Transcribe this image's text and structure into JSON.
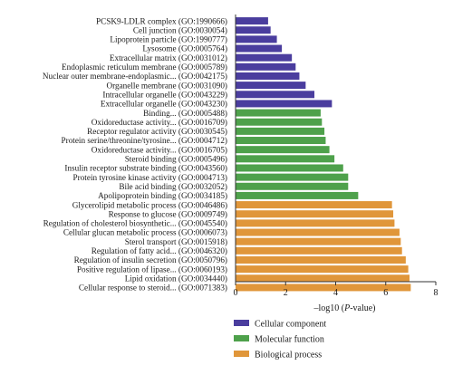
{
  "chart_data": {
    "type": "bar",
    "orientation": "horizontal",
    "xlabel": "–log10 (P-value)",
    "xlim": [
      0,
      8
    ],
    "xticks": [
      0,
      2,
      4,
      6,
      8
    ],
    "grid": false,
    "legend_position": "bottom-right",
    "series": [
      {
        "name": "Cellular component",
        "color": "#4a3d9e",
        "categories": [
          "PCSK9-LDLR complex (GO:1990666)",
          "Cell junction (GO:0030054)",
          "Lipoprotein particle (GO:1990777)",
          "Lysosome (GO:0005764)",
          "Extracellular matrix (GO:0031012)",
          "Endoplasmic reticulum membrane (GO:0005789)",
          "Nuclear outer membrane-endoplasmic... (GO:0042175)",
          "Organelle membrane (GO:0031090)",
          "Intracellular organelle (GO:0043229)",
          "Extracellular organelle (GO:0043230)"
        ],
        "values": [
          1.3,
          1.4,
          1.65,
          1.85,
          2.25,
          2.4,
          2.55,
          2.8,
          3.15,
          3.85
        ]
      },
      {
        "name": "Molecular function",
        "color": "#4ea14b",
        "categories": [
          "Binding... (GO:0005488)",
          "Oxidoreductase activity... (GO:0016709)",
          "Receptor regulator activity (GO:0030545)",
          "Protein serine/threonine/tyrosine... (GO:0004712)",
          "Oxidoreductase activity... (GO:0016705)",
          "Steroid binding (GO:0005496)",
          "Insulin receptor substrate binding (GO:0043560)",
          "Protein tyrosine kinase activity (GO:0004713)",
          "Bile acid binding (GO:0032052)",
          "Apolipoprotein binding (GO:0034185)"
        ],
        "values": [
          3.4,
          3.45,
          3.55,
          3.6,
          3.75,
          3.95,
          4.3,
          4.5,
          4.5,
          4.9
        ]
      },
      {
        "name": "Biological process",
        "color": "#e0963a",
        "categories": [
          "Glycerolipid metabolic process (GO:0046486)",
          "Response to glucose (GO:0009749)",
          "Regulation of cholesterol biosynthetic... (GO:0045540)",
          "Cellular glucan metabolic process (GO:0006073)",
          "Sterol transport (GO:0015918)",
          "Regulation of fatty acid... (GO:0046320)",
          "Regulation of insulin secretion (GO:0050796)",
          "Positive regulation of lipase... (GO:0060193)",
          "Lipid oxidation (GO:0034440)",
          "Cellular response to steroid... (GO:0071383)"
        ],
        "values": [
          6.25,
          6.3,
          6.35,
          6.55,
          6.6,
          6.65,
          6.8,
          6.9,
          6.95,
          7.0
        ]
      }
    ]
  }
}
